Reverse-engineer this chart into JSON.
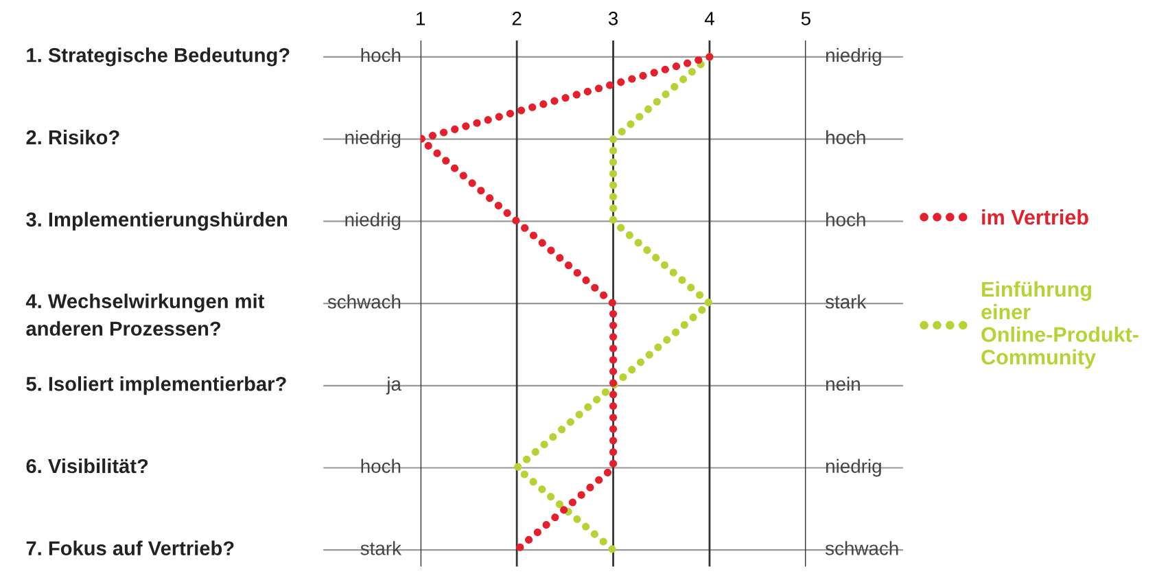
{
  "chart_data": {
    "type": "line",
    "orientation": "horizontal",
    "categories": [
      "1. Strategische Bedeutung?",
      "2. Risiko?",
      "3. Implementierungshürden",
      "4. Wechselwirkungen mit\nanderen Prozessen?",
      "5. Isoliert implementierbar?",
      "6. Visibilität?",
      "7. Fokus auf Vertrieb?"
    ],
    "series": [
      {
        "name": "im Vertrieb",
        "color": "#e3202b",
        "values": [
          4,
          1,
          2,
          3,
          3,
          3,
          2
        ]
      },
      {
        "name": "Einführung\neiner\nOnline-Produkt-\nCommunity",
        "color": "#b5d334",
        "values": [
          4,
          3,
          3,
          4,
          3,
          2,
          3
        ]
      }
    ],
    "xlim": [
      1,
      5
    ],
    "xticks": [
      1,
      2,
      3,
      4,
      5
    ],
    "grid": true,
    "legend": "right",
    "line_style": "dotted",
    "marker": "none",
    "annotations": [
      "hoch",
      "niedrig",
      "niedrig",
      "hoch",
      "niedrig",
      "hoch",
      "schwach",
      "stark",
      "ja",
      "nein",
      "hoch",
      "niedrig",
      "stark",
      "schwach"
    ]
  }
}
